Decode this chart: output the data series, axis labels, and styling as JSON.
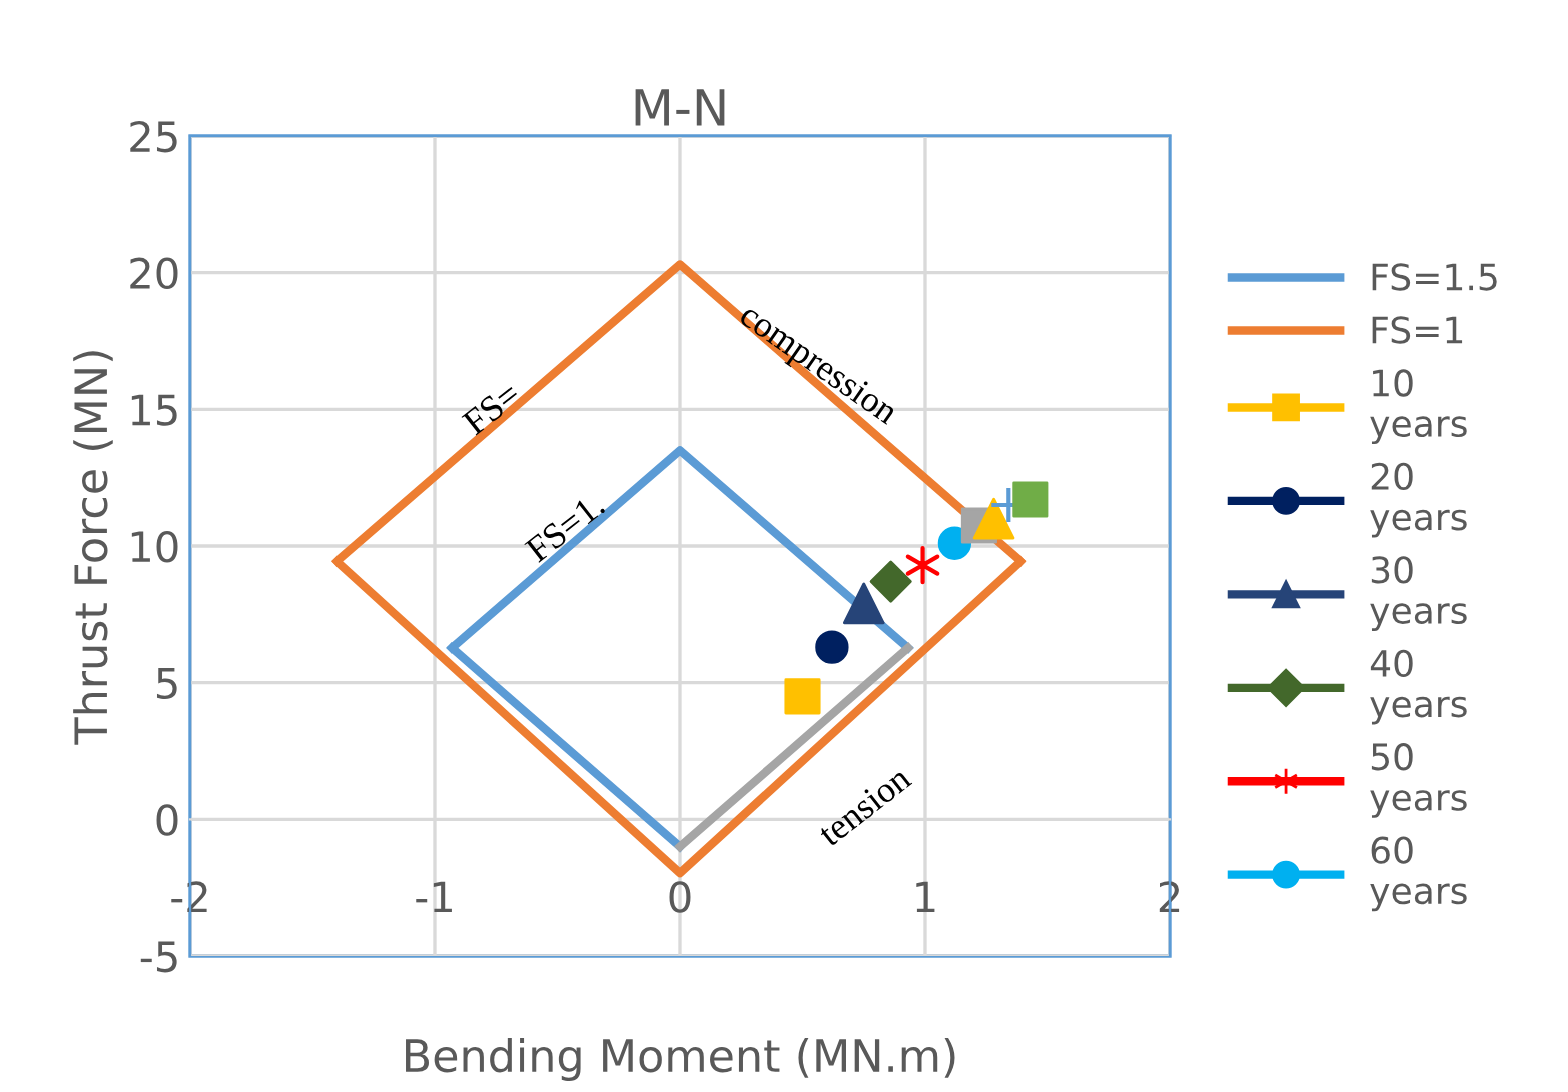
{
  "chart_data": {
    "type": "scatter",
    "title": "M-N",
    "xlabel": "Bending Moment (MN.m)",
    "ylabel": "Thrust Force (MN)",
    "xlim": [
      -2,
      2
    ],
    "xticks": [
      -2,
      -1,
      0,
      1,
      2
    ],
    "ylim": [
      -5,
      25
    ],
    "yticks": [
      -5,
      0,
      5,
      10,
      15,
      20,
      25
    ],
    "grid": true,
    "legend": "right",
    "series": [
      {
        "name": "FS=1.5",
        "type": "line",
        "color": "#5b9bd5",
        "marker": "none",
        "x": [
          -0.93,
          0,
          0.93
        ],
        "values": [
          6.27,
          13.5,
          6.27
        ]
      },
      {
        "type": "line",
        "color": "#5b9bd5",
        "marker": "none",
        "x": [
          -0.93,
          0
        ],
        "values": [
          6.27,
          -1.0
        ]
      },
      {
        "name": "FS=1",
        "type": "line",
        "color": "#ed7d31",
        "marker": "none",
        "x": [
          -1.4,
          0,
          1.39
        ],
        "values": [
          9.44,
          20.3,
          9.44
        ]
      },
      {
        "type": "line",
        "color": "#ed7d31",
        "marker": "none",
        "x": [
          -1.4,
          0,
          1.39
        ],
        "values": [
          9.44,
          -1.97,
          9.44
        ]
      },
      {
        "type": "line",
        "color": "#a5a5a5",
        "marker": "none",
        "x": [
          0,
          0.93
        ],
        "values": [
          -1.0,
          6.27
        ]
      },
      {
        "name": "10 years",
        "color": "#ffc000",
        "marker": "square",
        "x": [
          0.5
        ],
        "values": [
          4.5
        ]
      },
      {
        "name": "20 years",
        "color": "#002060",
        "marker": "circle",
        "x": [
          0.62
        ],
        "values": [
          6.3
        ]
      },
      {
        "name": "30 years",
        "color": "#264478",
        "marker": "triangle",
        "x": [
          0.75
        ],
        "values": [
          7.9
        ]
      },
      {
        "name": "40 years",
        "color": "#43682b",
        "marker": "diamond",
        "x": [
          0.86
        ],
        "values": [
          8.7
        ]
      },
      {
        "name": "50 years",
        "color": "#ff0000",
        "marker": "cross",
        "x": [
          0.99
        ],
        "values": [
          9.3
        ]
      },
      {
        "name": "60 years",
        "color": "#00b0f0",
        "marker": "circle",
        "x": [
          1.12
        ],
        "values": [
          10.1
        ]
      },
      {
        "color": "#a5a5a5",
        "marker": "square",
        "x": [
          1.22
        ],
        "values": [
          10.75
        ]
      },
      {
        "color": "#ffc000",
        "marker": "triangle",
        "x": [
          1.28
        ],
        "values": [
          11.0
        ]
      },
      {
        "color": "#5b9bd5",
        "marker": "cross",
        "x": [
          1.34
        ],
        "values": [
          11.5
        ]
      },
      {
        "color": "#70ad47",
        "marker": "square",
        "x": [
          1.43
        ],
        "values": [
          11.7
        ]
      }
    ],
    "annotations": [
      "compression",
      "tension",
      "FS=",
      "FS=1."
    ]
  }
}
